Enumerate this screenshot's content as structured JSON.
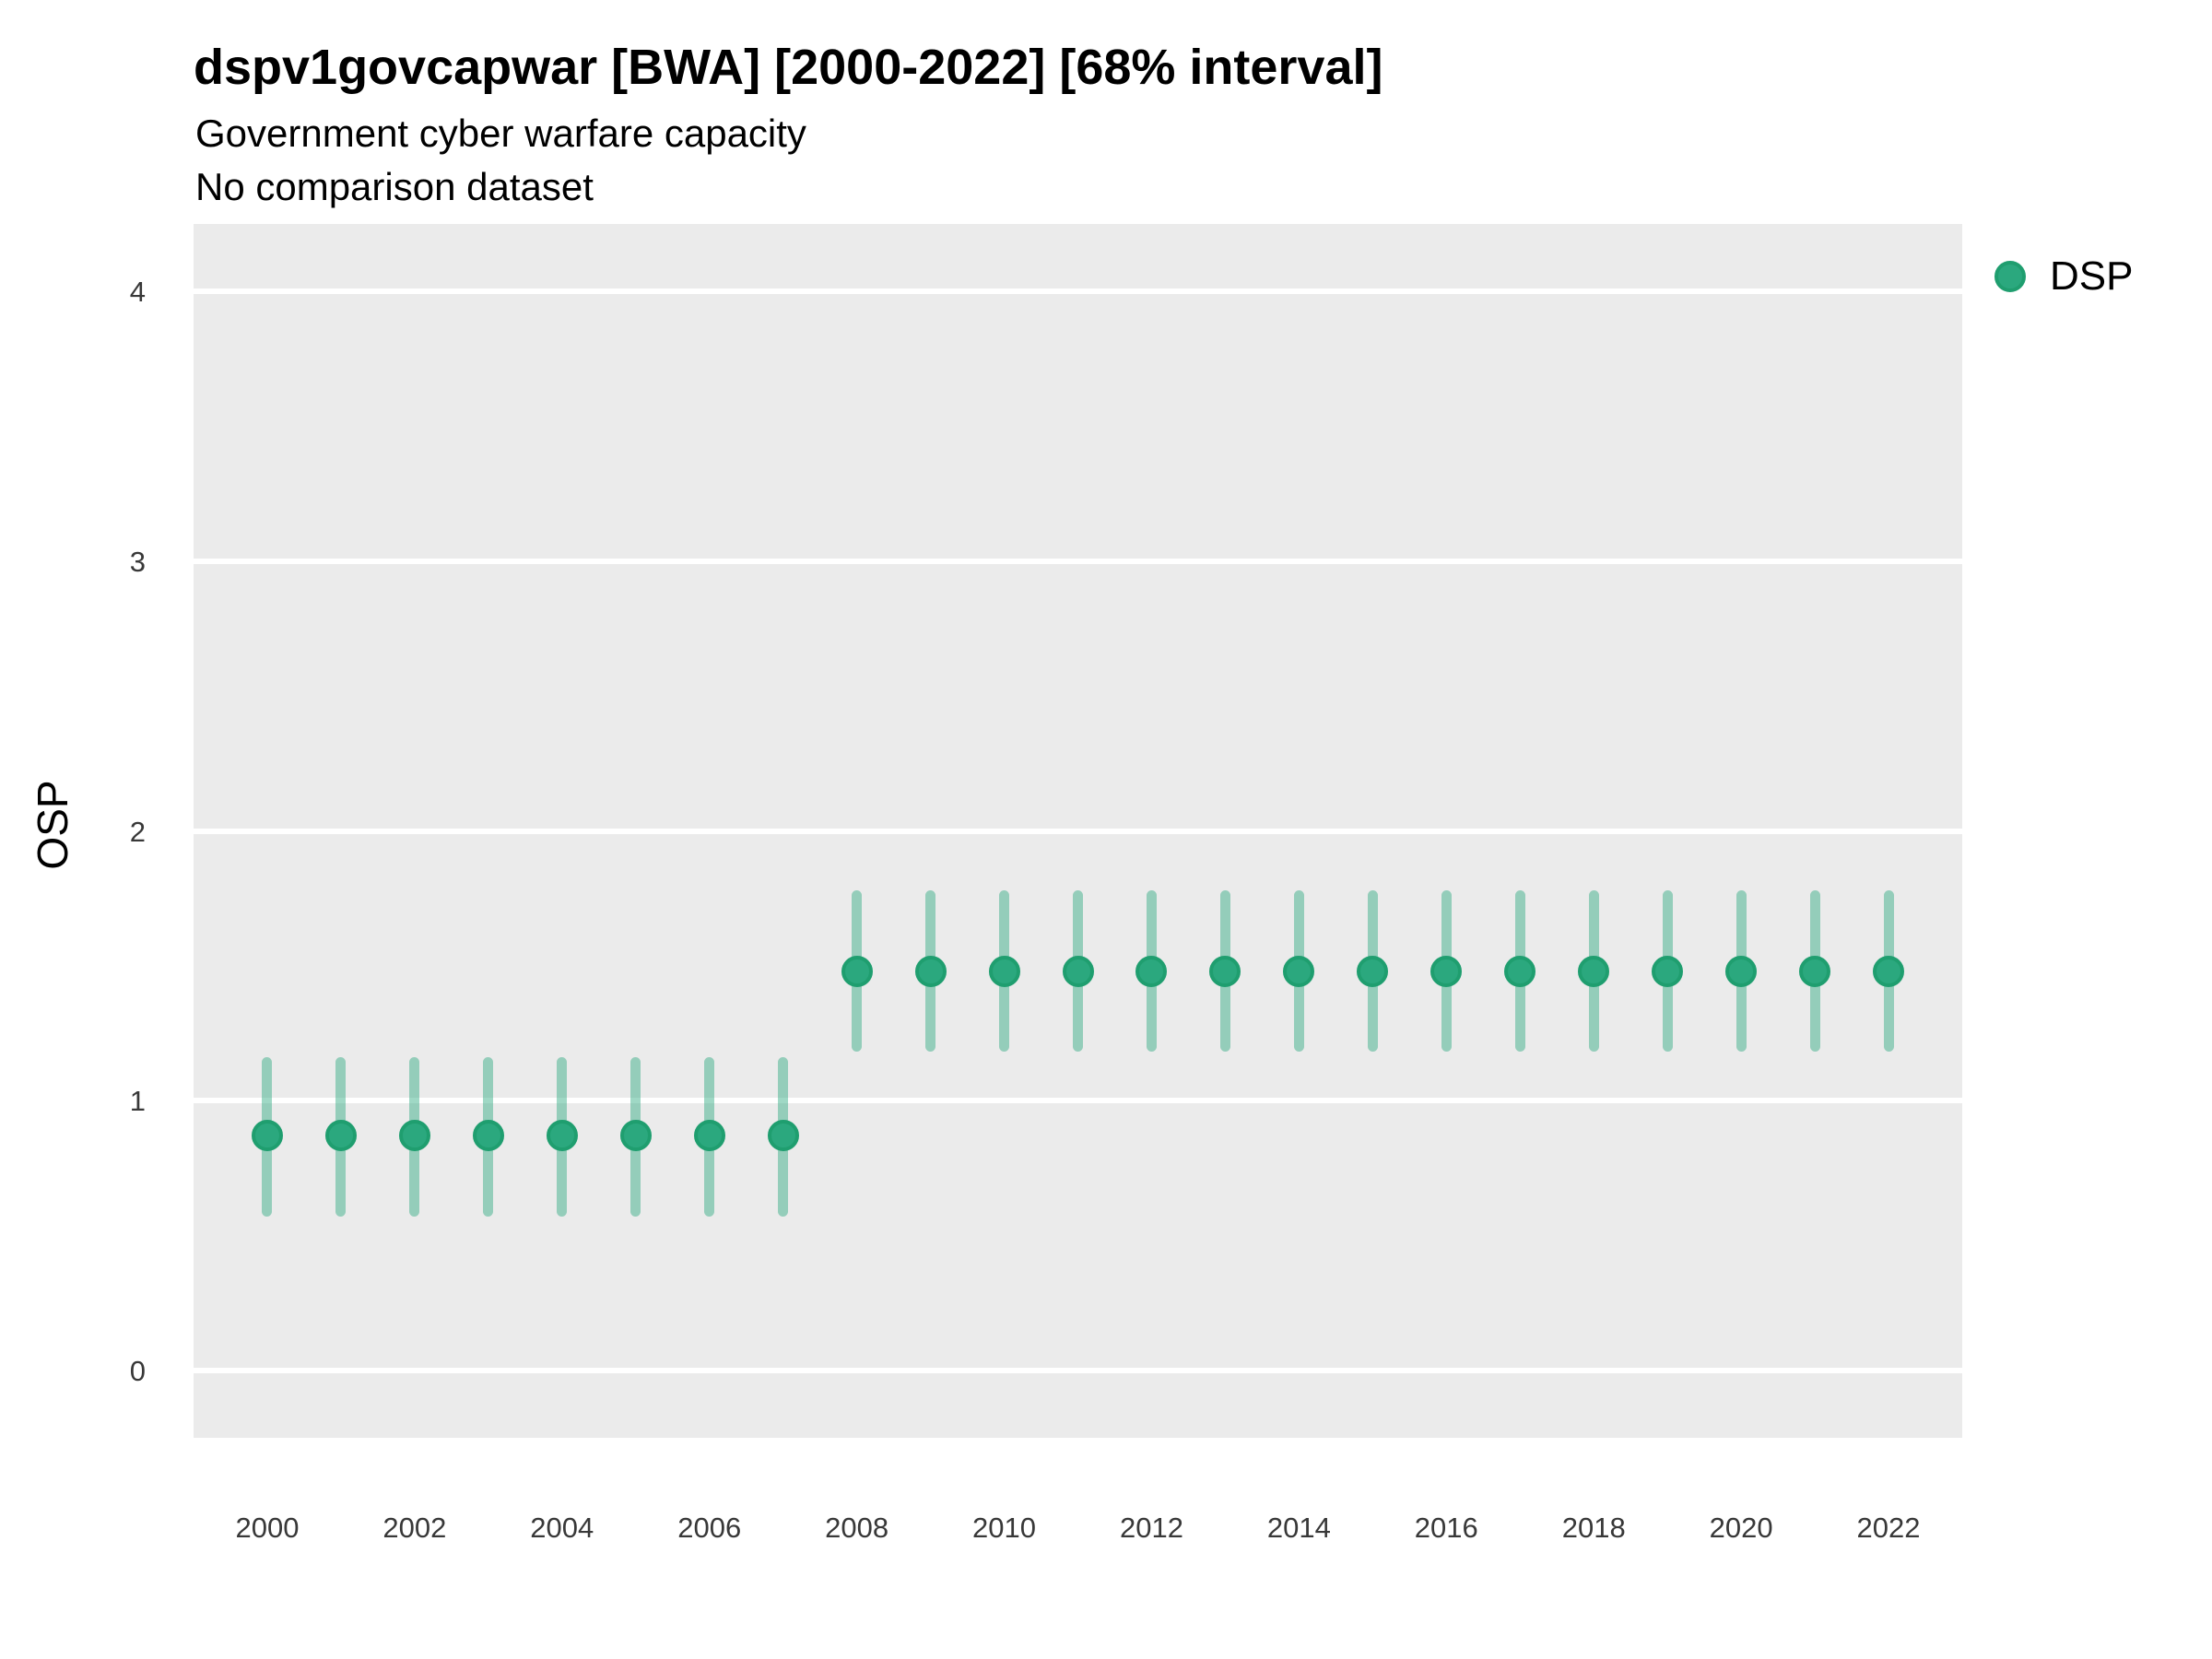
{
  "chart_data": {
    "type": "scatter",
    "subtype": "pointrange",
    "title": "dspv1govcapwar [BWA] [2000-2022] [68% interval]",
    "subtitle": "Government cyber warfare capacity",
    "note": "No comparison dataset",
    "ylabel": "OSP",
    "xlabel": "",
    "interval_level": "68%",
    "ylim": [
      -0.25,
      4.25
    ],
    "xlim": [
      1999,
      2023
    ],
    "yticks": [
      0,
      1,
      2,
      3,
      4
    ],
    "xticks": [
      2000,
      2002,
      2004,
      2006,
      2008,
      2010,
      2012,
      2014,
      2016,
      2018,
      2020,
      2022
    ],
    "grid": "major-horizontal-only",
    "legend_position": "right-top",
    "legend": [
      {
        "label": "DSP"
      }
    ],
    "series": [
      {
        "name": "DSP",
        "points": [
          {
            "year": 2000,
            "median": 0.87,
            "lo": 0.57,
            "hi": 1.16
          },
          {
            "year": 2001,
            "median": 0.87,
            "lo": 0.57,
            "hi": 1.16
          },
          {
            "year": 2002,
            "median": 0.87,
            "lo": 0.57,
            "hi": 1.16
          },
          {
            "year": 2003,
            "median": 0.87,
            "lo": 0.57,
            "hi": 1.16
          },
          {
            "year": 2004,
            "median": 0.87,
            "lo": 0.57,
            "hi": 1.16
          },
          {
            "year": 2005,
            "median": 0.87,
            "lo": 0.57,
            "hi": 1.16
          },
          {
            "year": 2006,
            "median": 0.87,
            "lo": 0.57,
            "hi": 1.16
          },
          {
            "year": 2007,
            "median": 0.87,
            "lo": 0.57,
            "hi": 1.16
          },
          {
            "year": 2008,
            "median": 1.48,
            "lo": 1.18,
            "hi": 1.78
          },
          {
            "year": 2009,
            "median": 1.48,
            "lo": 1.18,
            "hi": 1.78
          },
          {
            "year": 2010,
            "median": 1.48,
            "lo": 1.18,
            "hi": 1.78
          },
          {
            "year": 2011,
            "median": 1.48,
            "lo": 1.18,
            "hi": 1.78
          },
          {
            "year": 2012,
            "median": 1.48,
            "lo": 1.18,
            "hi": 1.78
          },
          {
            "year": 2013,
            "median": 1.48,
            "lo": 1.18,
            "hi": 1.78
          },
          {
            "year": 2014,
            "median": 1.48,
            "lo": 1.18,
            "hi": 1.78
          },
          {
            "year": 2015,
            "median": 1.48,
            "lo": 1.18,
            "hi": 1.78
          },
          {
            "year": 2016,
            "median": 1.48,
            "lo": 1.18,
            "hi": 1.78
          },
          {
            "year": 2017,
            "median": 1.48,
            "lo": 1.18,
            "hi": 1.78
          },
          {
            "year": 2018,
            "median": 1.48,
            "lo": 1.18,
            "hi": 1.78
          },
          {
            "year": 2019,
            "median": 1.48,
            "lo": 1.18,
            "hi": 1.78
          },
          {
            "year": 2020,
            "median": 1.48,
            "lo": 1.18,
            "hi": 1.78
          },
          {
            "year": 2021,
            "median": 1.48,
            "lo": 1.18,
            "hi": 1.78
          },
          {
            "year": 2022,
            "median": 1.48,
            "lo": 1.18,
            "hi": 1.78
          }
        ]
      }
    ],
    "colors": {
      "point_fill": "#2ba87e",
      "point_ring": "#1f9e6f",
      "interval_bar": "rgba(43, 168, 126, 0.45)",
      "panel_background": "#ebebeb",
      "gridline": "#ffffff",
      "tick_text": "#383838",
      "title_text": "#000000"
    }
  }
}
